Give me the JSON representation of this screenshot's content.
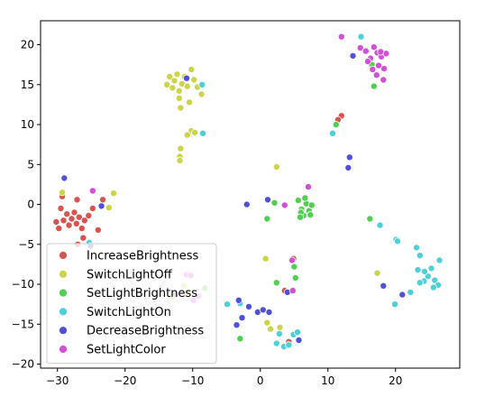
{
  "chart_data": {
    "type": "scatter",
    "xlim": [
      -32.5,
      29.5
    ],
    "ylim": [
      -20.5,
      23.0
    ],
    "xticks": [
      -30,
      -20,
      -10,
      0,
      10,
      20
    ],
    "yticks": [
      -20,
      -15,
      -10,
      -5,
      0,
      5,
      10,
      15,
      20
    ],
    "xtick_labels": [
      "−30",
      "−20",
      "−10",
      "0",
      "10",
      "20"
    ],
    "ytick_labels": [
      "−20",
      "−15",
      "−10",
      "−5",
      "0",
      "5",
      "10",
      "15",
      "20"
    ],
    "grid": false,
    "legend_position": "lower-left",
    "series": [
      {
        "name": "IncreaseBrightness",
        "color": "#d9534f",
        "points": [
          [
            -30.2,
            -2.2
          ],
          [
            -29.5,
            -0.5
          ],
          [
            -29.1,
            -2.0
          ],
          [
            -28.6,
            -1.2
          ],
          [
            -28.3,
            -2.6
          ],
          [
            -27.9,
            -1.8
          ],
          [
            -27.5,
            -1.0
          ],
          [
            -27.2,
            -2.4
          ],
          [
            -26.8,
            -1.6
          ],
          [
            -26.4,
            -3.0
          ],
          [
            -26.0,
            -2.0
          ],
          [
            -25.4,
            -1.4
          ],
          [
            -24.8,
            -0.5
          ],
          [
            -24.0,
            -3.2
          ],
          [
            -23.3,
            0.6
          ],
          [
            -27.1,
            0.6
          ],
          [
            -29.3,
            1.0
          ],
          [
            -29.8,
            -3.0
          ],
          [
            -26.2,
            -4.2
          ],
          [
            -27.0,
            -5.0
          ],
          [
            4.2,
            -17.2
          ],
          [
            4.9,
            -6.8
          ],
          [
            3.6,
            -10.8
          ],
          [
            12.0,
            11.1
          ],
          [
            11.5,
            10.6
          ]
        ]
      },
      {
        "name": "SwitchLightOff",
        "color": "#cbd44b",
        "points": [
          [
            -13.8,
            15.0
          ],
          [
            -13.4,
            16.0
          ],
          [
            -13.0,
            14.6
          ],
          [
            -12.7,
            15.5
          ],
          [
            -12.3,
            16.3
          ],
          [
            -12.0,
            14.2
          ],
          [
            -11.6,
            15.1
          ],
          [
            -11.2,
            16.0
          ],
          [
            -10.8,
            14.8
          ],
          [
            -10.2,
            16.9
          ],
          [
            -9.8,
            15.6
          ],
          [
            -9.3,
            14.7
          ],
          [
            -8.7,
            13.8
          ],
          [
            -10.5,
            12.8
          ],
          [
            -11.8,
            12.1
          ],
          [
            -12.0,
            13.3
          ],
          [
            -10.2,
            9.2
          ],
          [
            -9.7,
            9.0
          ],
          [
            -10.8,
            8.7
          ],
          [
            -11.8,
            7.0
          ],
          [
            -11.9,
            6.0
          ],
          [
            -11.9,
            5.5
          ],
          [
            -29.3,
            1.5
          ],
          [
            -21.7,
            1.4
          ],
          [
            -22.4,
            -0.4
          ],
          [
            2.4,
            4.7
          ],
          [
            0.8,
            -6.8
          ],
          [
            1.0,
            -14.8
          ],
          [
            1.5,
            -15.6
          ],
          [
            2.9,
            -15.4
          ],
          [
            -11.3,
            -10.2
          ],
          [
            -10.6,
            -11.0
          ],
          [
            17.3,
            -8.6
          ],
          [
            -13.0,
            -11.5
          ]
        ]
      },
      {
        "name": "SetLightBrightness",
        "color": "#4fd14f",
        "points": [
          [
            5.6,
            0.5
          ],
          [
            6.1,
            -0.6
          ],
          [
            6.4,
            -1.4
          ],
          [
            6.8,
            0.1
          ],
          [
            7.2,
            -0.8
          ],
          [
            7.6,
            -0.1
          ],
          [
            6.0,
            -1.0
          ],
          [
            6.6,
            0.8
          ],
          [
            5.9,
            -1.6
          ],
          [
            7.4,
            -1.3
          ],
          [
            1.0,
            -1.8
          ],
          [
            2.1,
            0.2
          ],
          [
            5.0,
            -7.8
          ],
          [
            5.2,
            -9.2
          ],
          [
            2.4,
            -9.8
          ],
          [
            -3.0,
            -16.8
          ],
          [
            16.2,
            -1.8
          ],
          [
            11.2,
            10.0
          ],
          [
            16.5,
            17.5
          ],
          [
            16.8,
            14.8
          ],
          [
            -8.2,
            -10.5
          ]
        ]
      },
      {
        "name": "SwitchLightOn",
        "color": "#4fcfd8",
        "points": [
          [
            -25.3,
            -4.8
          ],
          [
            -8.6,
            15.0
          ],
          [
            -8.5,
            8.9
          ],
          [
            10.7,
            8.9
          ],
          [
            14.9,
            21.0
          ],
          [
            17.7,
            -2.6
          ],
          [
            20.1,
            -4.4
          ],
          [
            20.3,
            -4.6
          ],
          [
            23.1,
            -5.4
          ],
          [
            23.6,
            -6.4
          ],
          [
            23.3,
            -8.2
          ],
          [
            24.2,
            -9.6
          ],
          [
            24.8,
            -9.0
          ],
          [
            25.3,
            -8.0
          ],
          [
            25.8,
            -9.5
          ],
          [
            26.3,
            -10.1
          ],
          [
            25.6,
            -10.4
          ],
          [
            24.3,
            -8.4
          ],
          [
            26.5,
            -7.0
          ],
          [
            23.6,
            -9.8
          ],
          [
            19.9,
            -12.5
          ],
          [
            22.2,
            -11.0
          ],
          [
            -4.9,
            -12.5
          ],
          [
            -3.0,
            -12.4
          ],
          [
            2.8,
            -16.2
          ],
          [
            3.5,
            -17.8
          ],
          [
            4.2,
            -17.6
          ],
          [
            4.9,
            -16.3
          ],
          [
            5.5,
            -16.0
          ],
          [
            2.4,
            -17.4
          ]
        ]
      },
      {
        "name": "DecreaseBrightness",
        "color": "#5050d8",
        "points": [
          [
            -29.0,
            3.3
          ],
          [
            -23.5,
            -0.2
          ],
          [
            -25.1,
            -5.2
          ],
          [
            -10.9,
            15.8
          ],
          [
            13.7,
            18.6
          ],
          [
            13.2,
            5.9
          ],
          [
            13.0,
            4.6
          ],
          [
            1.1,
            0.6
          ],
          [
            -2.0,
            0.0
          ],
          [
            18.2,
            -10.2
          ],
          [
            21.0,
            -11.3
          ],
          [
            -3.2,
            -12.0
          ],
          [
            -1.7,
            -12.8
          ],
          [
            -2.7,
            -14.2
          ],
          [
            -3.5,
            -15.1
          ],
          [
            -0.4,
            -13.5
          ],
          [
            0.4,
            -13.2
          ],
          [
            4.0,
            -11.0
          ],
          [
            5.7,
            -17.0
          ],
          [
            1.3,
            -13.5
          ]
        ]
      },
      {
        "name": "SetLightColor",
        "color": "#d34fd8",
        "points": [
          [
            12.0,
            21.0
          ],
          [
            14.8,
            19.6
          ],
          [
            15.6,
            19.2
          ],
          [
            16.3,
            18.3
          ],
          [
            16.8,
            19.7
          ],
          [
            17.3,
            19.0
          ],
          [
            17.9,
            18.5
          ],
          [
            18.3,
            17.0
          ],
          [
            18.6,
            18.9
          ],
          [
            17.5,
            17.4
          ],
          [
            16.6,
            16.9
          ],
          [
            18.2,
            15.6
          ],
          [
            17.2,
            16.2
          ],
          [
            17.8,
            19.1
          ],
          [
            15.9,
            17.9
          ],
          [
            -24.8,
            1.7
          ],
          [
            7.1,
            2.2
          ],
          [
            3.6,
            -0.1
          ],
          [
            4.8,
            -10.8
          ],
          [
            4.7,
            -7.0
          ],
          [
            -12.5,
            -11.2
          ],
          [
            -10.9,
            -8.8
          ],
          [
            -10.3,
            -8.9
          ],
          [
            -9.9,
            -12.0
          ],
          [
            -9.2,
            -11.5
          ]
        ]
      }
    ]
  }
}
